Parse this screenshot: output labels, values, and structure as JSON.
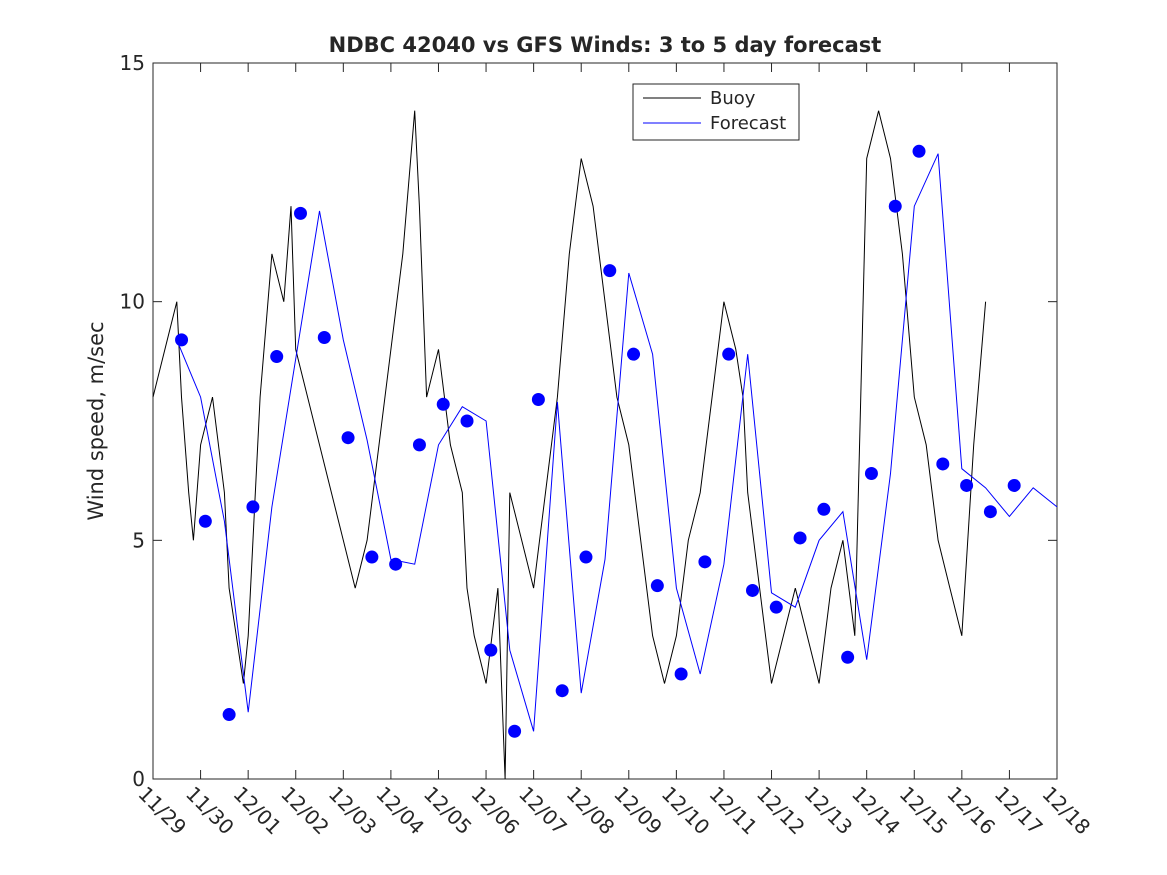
{
  "chart_data": {
    "type": "line",
    "title": "NDBC 42040 vs GFS Winds: 3 to 5 day forecast",
    "xlabel": "",
    "ylabel": "Wind speed, m/sec",
    "xlim": [
      0,
      19
    ],
    "ylim": [
      0,
      15
    ],
    "yticks": [
      0,
      5,
      10,
      15
    ],
    "x_tick_labels": [
      "11/29",
      "11/30",
      "12/01",
      "12/02",
      "12/03",
      "12/04",
      "12/05",
      "12/06",
      "12/07",
      "12/08",
      "12/09",
      "12/10",
      "12/11",
      "12/12",
      "12/13",
      "12/14",
      "12/15",
      "12/16",
      "12/17",
      "12/18"
    ],
    "legend": {
      "placement": "top-center",
      "entries": [
        {
          "label": "Buoy",
          "color": "#000000"
        },
        {
          "label": "Forecast",
          "color": "#0000ff"
        }
      ]
    },
    "series": [
      {
        "name": "Buoy",
        "color": "#000000",
        "x": [
          0,
          0.25,
          0.5,
          0.6,
          0.75,
          0.85,
          1.0,
          1.25,
          1.5,
          1.6,
          1.75,
          1.9,
          2.0,
          2.25,
          2.5,
          2.75,
          2.9,
          3.0,
          3.25,
          3.5,
          3.75,
          4.0,
          4.25,
          4.5,
          4.75,
          5.0,
          5.25,
          5.5,
          5.6,
          5.75,
          6.0,
          6.25,
          6.5,
          6.6,
          6.75,
          7.0,
          7.25,
          7.4,
          7.5,
          7.75,
          8.0,
          8.25,
          8.5,
          8.75,
          9.0,
          9.25,
          9.5,
          9.75,
          10.0,
          10.25,
          10.5,
          10.75,
          11.0,
          11.25,
          11.5,
          11.75,
          12.0,
          12.25,
          12.4,
          12.5,
          12.75,
          13.0,
          13.25,
          13.5,
          13.75,
          14.0,
          14.25,
          14.5,
          14.75,
          15.0,
          15.25,
          15.5,
          15.75,
          16.0,
          16.25,
          16.5,
          16.75,
          17.0,
          17.25,
          17.5
        ],
        "y": [
          8,
          9,
          10,
          8,
          6,
          5,
          7,
          8,
          6,
          4,
          3,
          2,
          3,
          8,
          11,
          10,
          12,
          9,
          8,
          7,
          6,
          5,
          4,
          5,
          7,
          9,
          11,
          14,
          12,
          8,
          9,
          7,
          6,
          4,
          3,
          2,
          4,
          0,
          6,
          5,
          4,
          6,
          8,
          11,
          13,
          12,
          10,
          8,
          7,
          5,
          3,
          2,
          3,
          5,
          6,
          8,
          10,
          9,
          8,
          6,
          4,
          2,
          3,
          4,
          3,
          2,
          4,
          5,
          3,
          13,
          14,
          13,
          11,
          8,
          7,
          5,
          4,
          3,
          7,
          10
        ]
      },
      {
        "name": "Forecast",
        "color": "#0000ff",
        "x": [
          0.5,
          1.0,
          1.5,
          2.0,
          2.5,
          3.0,
          3.5,
          4.0,
          4.5,
          5.0,
          5.5,
          6.0,
          6.5,
          7.0,
          7.5,
          8.0,
          8.5,
          9.0,
          9.5,
          10.0,
          10.5,
          11.0,
          11.5,
          12.0,
          12.5,
          13.0,
          13.5,
          14.0,
          14.5,
          15.0,
          15.5,
          16.0,
          16.5,
          17.0,
          17.5,
          18.0,
          18.5,
          19.0
        ],
        "y": [
          9.2,
          8.0,
          5.4,
          1.4,
          5.7,
          8.8,
          11.9,
          9.2,
          7.1,
          4.6,
          4.5,
          7.0,
          7.8,
          7.5,
          2.7,
          1.0,
          7.9,
          1.8,
          4.6,
          10.6,
          8.9,
          4.0,
          2.2,
          4.5,
          8.9,
          3.9,
          3.6,
          5.0,
          5.6,
          2.5,
          6.4,
          12.0,
          13.1,
          6.5,
          6.1,
          5.5,
          6.1,
          5.7
        ]
      }
    ],
    "markers": {
      "name": "Forecast points",
      "color": "#0000ff",
      "x": [
        0.6,
        1.1,
        1.6,
        2.1,
        2.6,
        3.1,
        3.6,
        4.1,
        4.6,
        5.1,
        5.6,
        6.1,
        6.6,
        7.1,
        7.6,
        8.1,
        8.6,
        9.1,
        9.6,
        10.1,
        10.6,
        11.1,
        11.6,
        12.1,
        12.6,
        13.1,
        13.6,
        14.1,
        14.6,
        15.1,
        15.6,
        16.1,
        16.6,
        17.1,
        17.6,
        18.1
      ],
      "y": [
        9.2,
        5.4,
        1.35,
        5.7,
        8.85,
        11.85,
        9.25,
        7.15,
        4.65,
        4.5,
        7.0,
        7.85,
        7.5,
        2.7,
        1.0,
        7.95,
        1.85,
        4.65,
        10.65,
        8.9,
        4.05,
        2.2,
        4.55,
        8.9,
        3.95,
        3.6,
        5.05,
        5.65,
        2.55,
        6.4,
        12.0,
        13.15,
        6.6,
        6.15,
        5.6,
        6.15
      ]
    }
  }
}
